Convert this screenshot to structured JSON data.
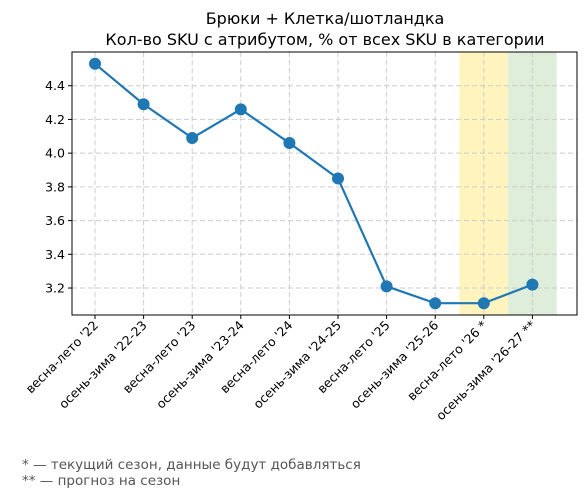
{
  "chart_data": {
    "type": "line",
    "title_lines": [
      "Брюки + Клетка/шотландка",
      "Кол-во SKU с атрибутом, % от всех SKU в категории"
    ],
    "xlabel": "",
    "ylabel": "",
    "categories": [
      "весна-лето '22",
      "осень-зима '22-23",
      "весна-лето '23",
      "осень-зима '23-24",
      "весна-лето '24",
      "осень-зима '24-25",
      "весна-лето '25",
      "осень-зима '25-26",
      "весна-лето '26 *",
      "осень-зима '26-27 **"
    ],
    "series": [
      {
        "values": [
          4.53,
          4.29,
          4.09,
          4.26,
          4.06,
          3.85,
          3.21,
          3.11,
          3.11,
          3.22
        ],
        "color": "#1f77b4"
      }
    ],
    "ylim": [
      3.04,
      4.6
    ],
    "yticks": [
      "3.2",
      "3.4",
      "3.6",
      "3.8",
      "4.0",
      "4.2",
      "4.4"
    ],
    "grid": true,
    "highlights": [
      {
        "category_index": 8,
        "color": "#fff2b3"
      },
      {
        "category_index": 9,
        "color": "#d8ebd3"
      }
    ],
    "footnotes": [
      "* — текущий сезон, данные будут добавляться",
      "** — прогноз на сезон"
    ]
  }
}
